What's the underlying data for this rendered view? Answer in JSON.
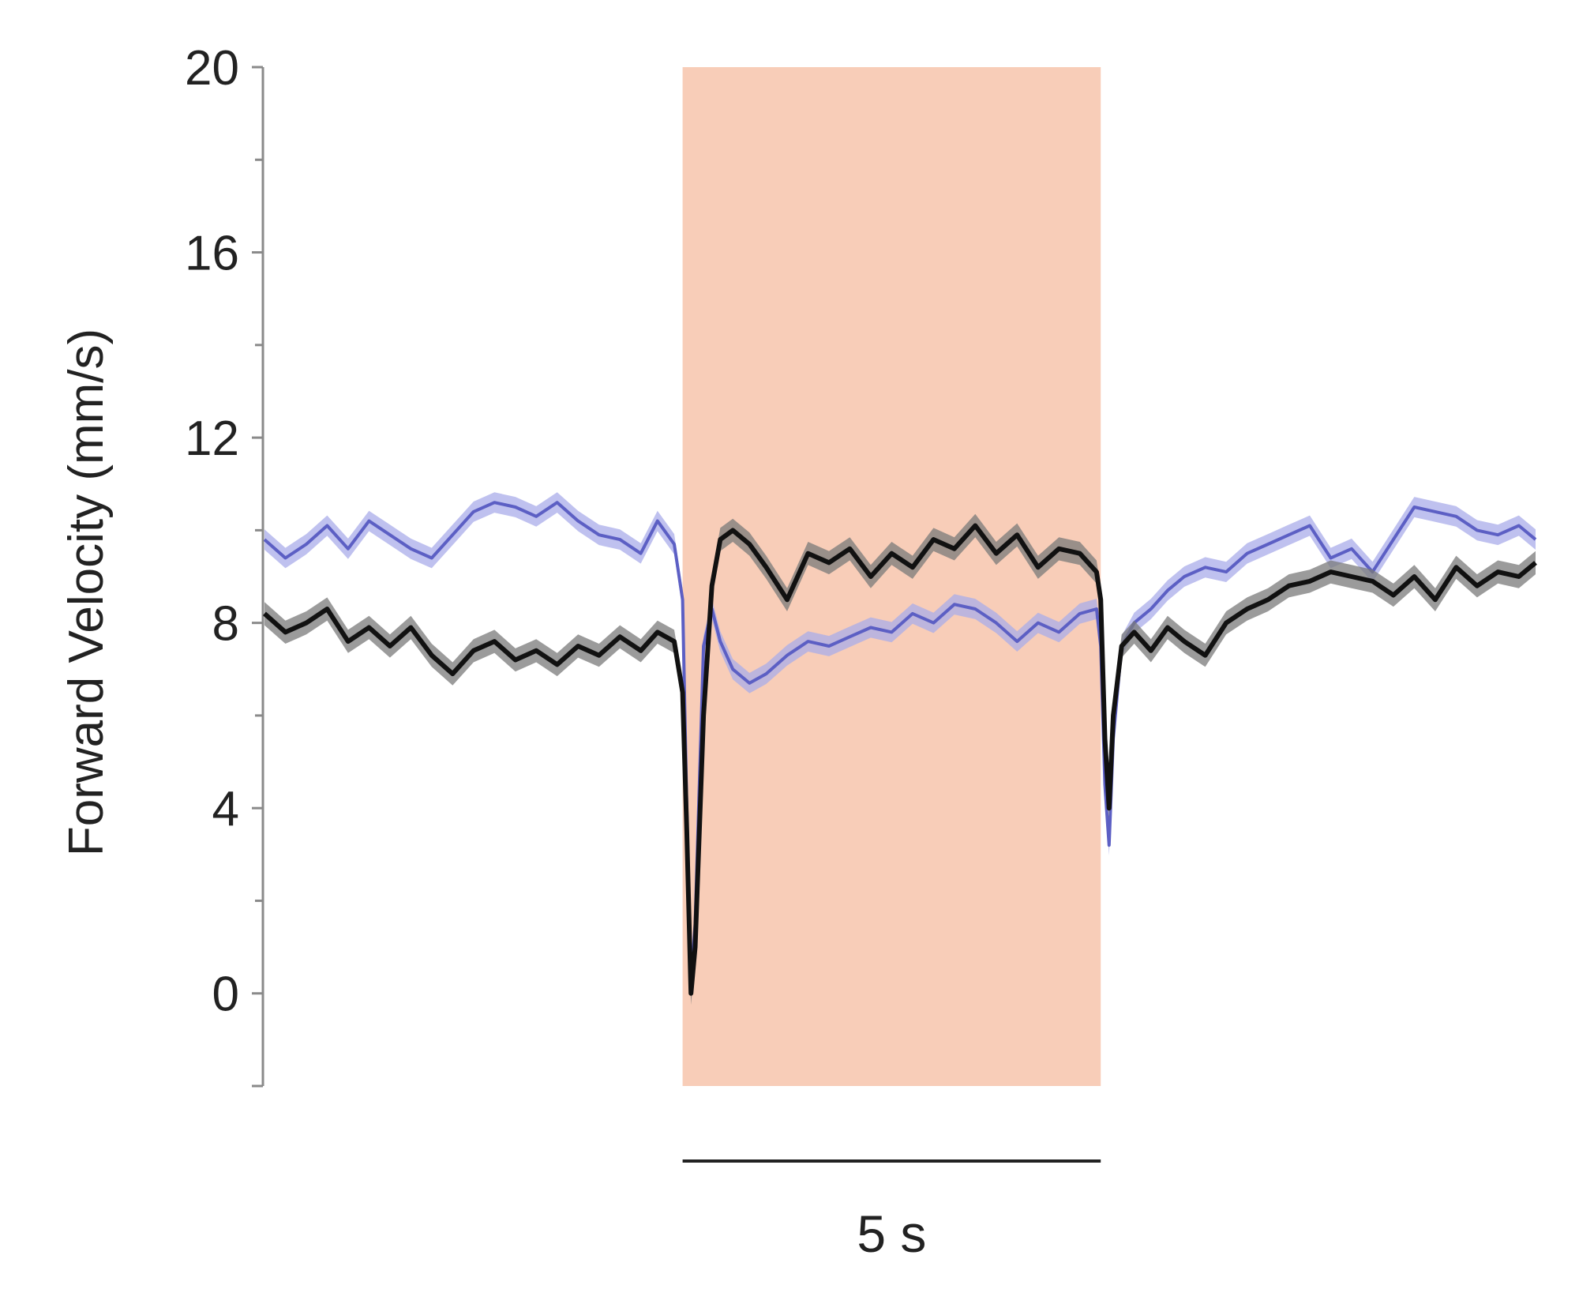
{
  "chart_data": {
    "type": "line",
    "title": "",
    "xlabel": "",
    "ylabel": "Forward Velocity (mm/s)",
    "ylim": [
      -2,
      20
    ],
    "xlim": [
      0,
      15.2
    ],
    "yticks": [
      0,
      4,
      8,
      12,
      16,
      20
    ],
    "yminor_ticks": [
      2,
      6,
      10,
      14,
      18
    ],
    "grid": false,
    "legend": "none",
    "stimulus": {
      "start": 5,
      "end": 10,
      "color": "#f8cdb8"
    },
    "scale_bar": {
      "start": 5,
      "end": 10,
      "label": "5 s"
    },
    "series": [
      {
        "color": "#5c5fc4",
        "band_color": "#a9acea",
        "band_halfwidth": 0.22,
        "x": [
          0,
          0.25,
          0.5,
          0.75,
          1.0,
          1.25,
          1.5,
          1.75,
          2.0,
          2.25,
          2.5,
          2.75,
          3.0,
          3.25,
          3.5,
          3.75,
          4.0,
          4.25,
          4.5,
          4.7,
          4.9,
          5.0,
          5.05,
          5.1,
          5.15,
          5.25,
          5.35,
          5.45,
          5.6,
          5.8,
          6.0,
          6.25,
          6.5,
          6.75,
          7.0,
          7.25,
          7.5,
          7.75,
          8.0,
          8.25,
          8.5,
          8.75,
          9.0,
          9.25,
          9.5,
          9.75,
          9.95,
          10.0,
          10.05,
          10.1,
          10.15,
          10.25,
          10.4,
          10.6,
          10.8,
          11.0,
          11.25,
          11.5,
          11.75,
          12.0,
          12.25,
          12.5,
          12.75,
          13.0,
          13.25,
          13.5,
          13.75,
          14.0,
          14.25,
          14.5,
          14.75,
          15.0,
          15.2
        ],
        "values": [
          9.8,
          9.4,
          9.7,
          10.1,
          9.6,
          10.2,
          9.9,
          9.6,
          9.4,
          9.9,
          10.4,
          10.6,
          10.5,
          10.3,
          10.6,
          10.2,
          9.9,
          9.8,
          9.5,
          10.2,
          9.7,
          8.5,
          4.0,
          0.2,
          1.5,
          7.5,
          8.3,
          7.6,
          7.0,
          6.7,
          6.9,
          7.3,
          7.6,
          7.5,
          7.7,
          7.9,
          7.8,
          8.2,
          8.0,
          8.4,
          8.3,
          8.0,
          7.6,
          8.0,
          7.8,
          8.2,
          8.3,
          7.5,
          4.5,
          3.2,
          5.5,
          7.5,
          8.0,
          8.3,
          8.7,
          9.0,
          9.2,
          9.1,
          9.5,
          9.7,
          9.9,
          10.1,
          9.4,
          9.6,
          9.1,
          9.8,
          10.5,
          10.4,
          10.3,
          10.0,
          9.9,
          10.1,
          9.8
        ]
      },
      {
        "color": "#111111",
        "band_color": "#7a7a7a",
        "band_halfwidth": 0.25,
        "x": [
          0,
          0.25,
          0.5,
          0.75,
          1.0,
          1.25,
          1.5,
          1.75,
          2.0,
          2.25,
          2.5,
          2.75,
          3.0,
          3.25,
          3.5,
          3.75,
          4.0,
          4.25,
          4.5,
          4.7,
          4.9,
          5.0,
          5.05,
          5.1,
          5.15,
          5.25,
          5.35,
          5.45,
          5.6,
          5.8,
          6.0,
          6.25,
          6.5,
          6.75,
          7.0,
          7.25,
          7.5,
          7.75,
          8.0,
          8.25,
          8.5,
          8.75,
          9.0,
          9.25,
          9.5,
          9.75,
          9.95,
          10.0,
          10.05,
          10.1,
          10.15,
          10.25,
          10.4,
          10.6,
          10.8,
          11.0,
          11.25,
          11.5,
          11.75,
          12.0,
          12.25,
          12.5,
          12.75,
          13.0,
          13.25,
          13.5,
          13.75,
          14.0,
          14.25,
          14.5,
          14.75,
          15.0,
          15.2
        ],
        "values": [
          8.2,
          7.8,
          8.0,
          8.3,
          7.6,
          7.9,
          7.5,
          7.9,
          7.3,
          6.9,
          7.4,
          7.6,
          7.2,
          7.4,
          7.1,
          7.5,
          7.3,
          7.7,
          7.4,
          7.8,
          7.6,
          6.5,
          3.5,
          0.0,
          1.0,
          6.0,
          8.8,
          9.8,
          10.0,
          9.7,
          9.2,
          8.5,
          9.5,
          9.3,
          9.6,
          9.0,
          9.5,
          9.2,
          9.8,
          9.6,
          10.1,
          9.5,
          9.9,
          9.2,
          9.6,
          9.5,
          9.1,
          8.5,
          5.5,
          4.0,
          6.0,
          7.5,
          7.8,
          7.4,
          7.9,
          7.6,
          7.3,
          8.0,
          8.3,
          8.5,
          8.8,
          8.9,
          9.1,
          9.0,
          8.9,
          8.6,
          9.0,
          8.5,
          9.2,
          8.8,
          9.1,
          9.0,
          9.3
        ]
      }
    ]
  }
}
